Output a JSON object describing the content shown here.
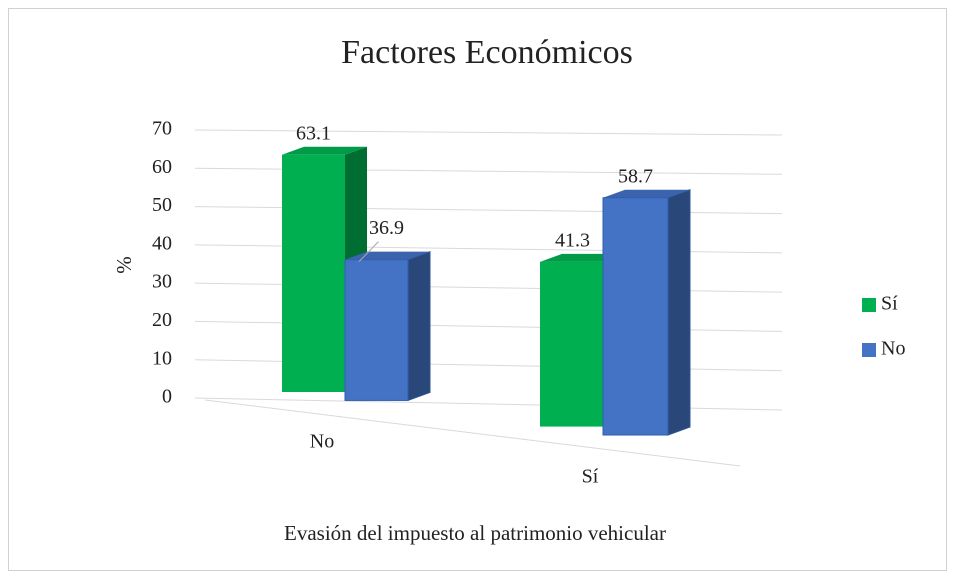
{
  "chart_data": {
    "type": "bar3d",
    "title": "Factores Económicos",
    "xlabel": "Evasión del impuesto al patrimonio vehicular",
    "ylabel": "%",
    "categories": [
      "No",
      "Sí"
    ],
    "series": [
      {
        "name": "Sí",
        "color": "#00b050",
        "values": [
          63.1,
          41.3
        ]
      },
      {
        "name": "No",
        "color": "#4472c4",
        "values": [
          36.9,
          58.7
        ]
      }
    ],
    "ylim": [
      0,
      70
    ],
    "yticks": [
      0,
      10,
      20,
      30,
      40,
      50,
      60,
      70
    ],
    "grid": true,
    "legend": "right"
  }
}
